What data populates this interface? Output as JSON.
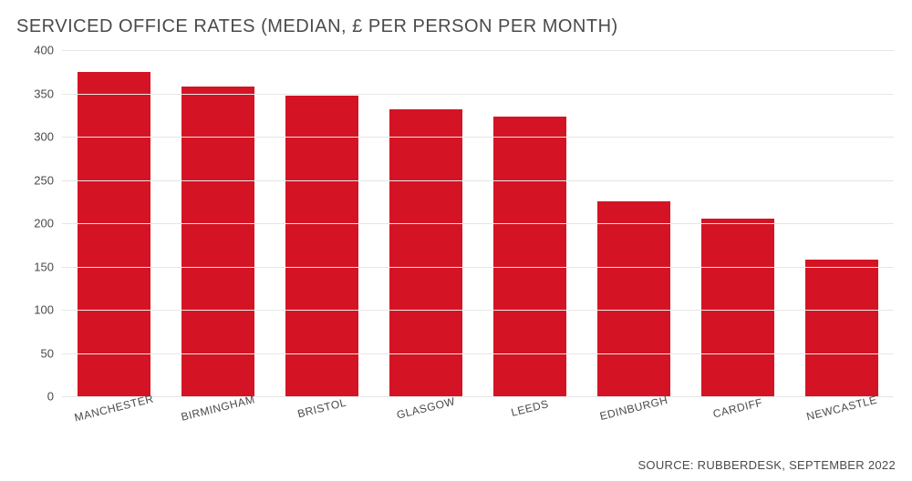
{
  "chart": {
    "type": "bar",
    "title": "SERVICED OFFICE RATES (MEDIAN, £ PER PERSON PER MONTH)",
    "title_color": "#4a4a4a",
    "title_fontsize": 20,
    "categories": [
      "MANCHESTER",
      "BIRMINGHAM",
      "BRISTOL",
      "GLASGOW",
      "LEEDS",
      "EDINBURGH",
      "CARDIFF",
      "NEWCASTLE"
    ],
    "values": [
      375,
      358,
      347,
      332,
      323,
      225,
      205,
      158
    ],
    "bar_color": "#d41424",
    "bar_width": 0.7,
    "background_color": "#ffffff",
    "grid_color": "#e6e6e6",
    "axis_color": "#666666",
    "text_color": "#4a4a4a",
    "ylim": [
      0,
      400
    ],
    "ytick_step": 50,
    "yticks": [
      0,
      50,
      100,
      150,
      200,
      250,
      300,
      350,
      400
    ],
    "tick_fontsize": 13,
    "xlabel_fontsize": 12,
    "xlabel_rotation_deg": -14,
    "source": "SOURCE: RUBBERDESK, SEPTEMBER 2022",
    "source_fontsize": 13
  }
}
